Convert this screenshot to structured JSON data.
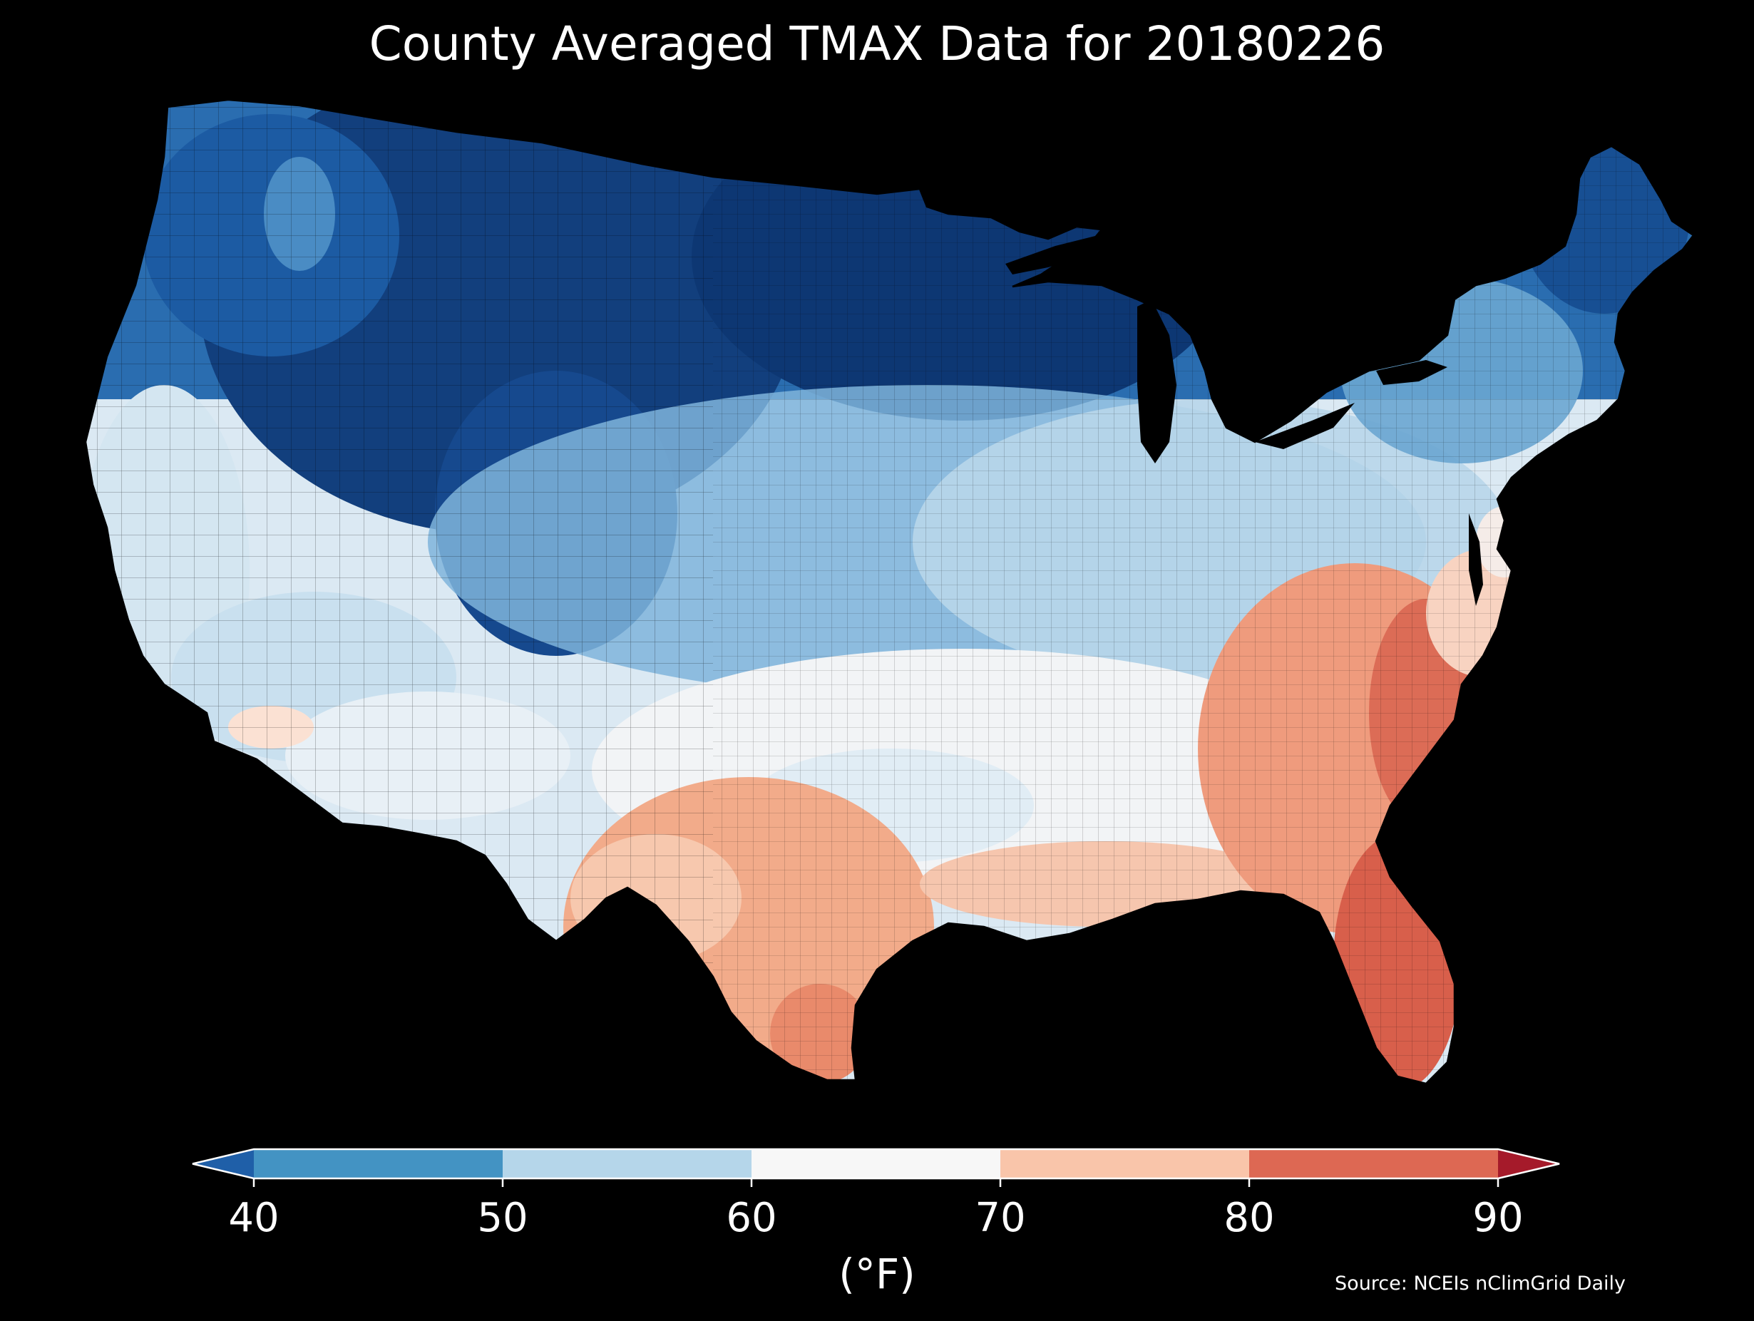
{
  "title": "County Averaged TMAX Data for 20180226",
  "colorbar": {
    "unit": "(°F)",
    "ticks": [
      "40",
      "50",
      "60",
      "70",
      "80",
      "90"
    ],
    "tick_values": [
      40,
      50,
      60,
      70,
      80,
      90
    ],
    "extend": "both",
    "bins": [
      {
        "range": [
          30,
          40
        ],
        "color": "#2166ac"
      },
      {
        "range": [
          40,
          50
        ],
        "color": "#4393c3"
      },
      {
        "range": [
          50,
          60
        ],
        "color": "#92c5de"
      },
      {
        "range": [
          60,
          70
        ],
        "color": "#f7f7f7"
      },
      {
        "range": [
          70,
          80
        ],
        "color": "#f4a582"
      },
      {
        "range": [
          80,
          90
        ],
        "color": "#d6604d"
      },
      {
        "range": [
          90,
          100
        ],
        "color": "#b2182b"
      }
    ],
    "segment_colors": [
      "#4393c3",
      "#b5d6ea",
      "#f7f7f7",
      "#f9c5aa",
      "#dd6853"
    ],
    "under_color": "#1f5fa8",
    "over_color": "#a51a2a"
  },
  "source": "Source: NCEIs nClimGrid Daily",
  "map": {
    "region": "Contiguous United States",
    "variable": "TMAX",
    "date": "20180226",
    "background": "#000000",
    "county_border_color": "#000000",
    "palette": {
      "very_cold": "#08306b",
      "cold_dark": "#0f4c8f",
      "cold": "#2166ac",
      "cool": "#4393c3",
      "cool_light": "#92c5de",
      "mild": "#d1e5f0",
      "neutral": "#f7f7f7",
      "warm_light": "#fddbc7",
      "warm": "#f4a582",
      "hot": "#d6604d",
      "very_hot": "#c6463b"
    }
  }
}
